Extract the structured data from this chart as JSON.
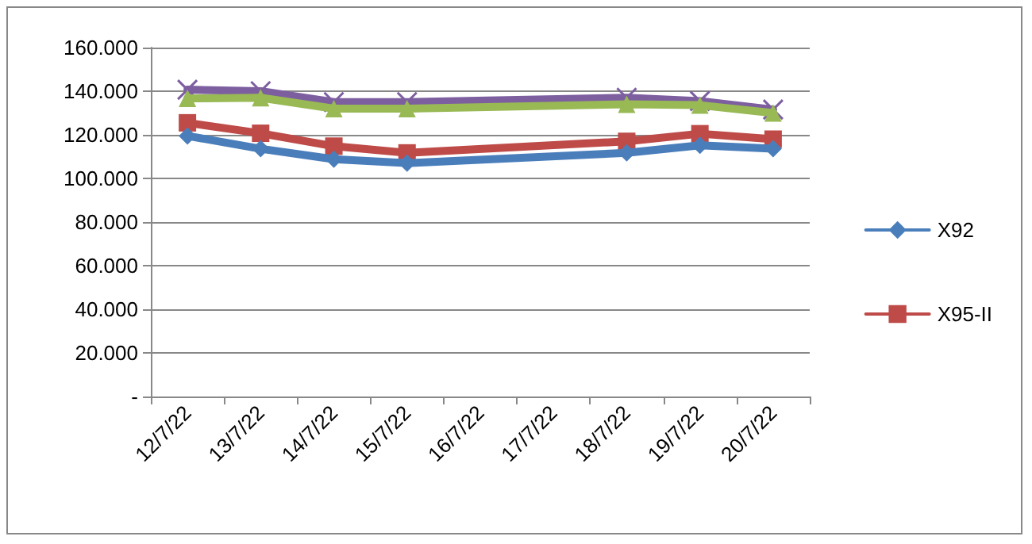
{
  "chart_data": {
    "type": "line",
    "categories": [
      "12/7/22",
      "13/7/22",
      "14/7/22",
      "15/7/22",
      "16/7/22",
      "17/7/22",
      "18/7/22",
      "19/7/22",
      "20/7/22"
    ],
    "series": [
      {
        "name": "X92",
        "color": "#4a7ebb",
        "marker": "diamond",
        "values": [
          119.5,
          113.6,
          108.8,
          107,
          null,
          null,
          111.7,
          115.2,
          113.6
        ]
      },
      {
        "name": "X95-II",
        "color": "#be4b48",
        "marker": "square",
        "values": [
          125.5,
          120.7,
          114.8,
          111.7,
          null,
          null,
          117,
          120.5,
          118
        ]
      },
      {
        "color": "#98b954",
        "marker": "triangle",
        "values": [
          136.7,
          137,
          132,
          132,
          null,
          null,
          134,
          133.6,
          130
        ]
      },
      {
        "color": "#7d5fa0",
        "marker": "cross",
        "values": [
          140.7,
          140,
          135,
          135,
          null,
          null,
          137,
          135.5,
          131.6
        ]
      }
    ],
    "ylim": [
      0,
      160
    ],
    "yticks": [
      {
        "value": 0,
        "label": "-"
      },
      {
        "value": 20,
        "label": "20.000"
      },
      {
        "value": 40,
        "label": "40.000"
      },
      {
        "value": 60,
        "label": "60.000"
      },
      {
        "value": 80,
        "label": "80.000"
      },
      {
        "value": 100,
        "label": "100.000"
      },
      {
        "value": 120,
        "label": "120.000"
      },
      {
        "value": 140,
        "label": "140.000"
      },
      {
        "value": 160,
        "label": "160.000"
      }
    ],
    "grid": "y",
    "legend": "right"
  }
}
